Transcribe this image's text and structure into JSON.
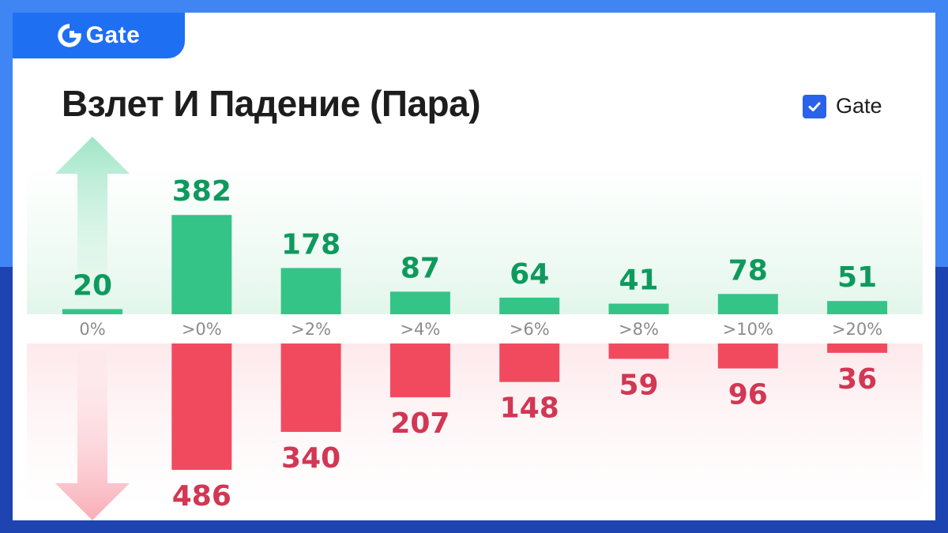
{
  "brand": {
    "name": "Gate"
  },
  "legend": {
    "label": "Gate",
    "checked": true
  },
  "colors": {
    "rise": "#34c487",
    "fall": "#f14a5e",
    "rise_text": "#0e9a5d",
    "fall_text": "#d23753",
    "brand_blue": "#1f6ff2"
  },
  "chart_data": {
    "type": "bar",
    "title": "Взлет И Падение (Пара)",
    "categories": [
      "0%",
      ">0%",
      ">2%",
      ">4%",
      ">6%",
      ">8%",
      ">10%",
      ">20%"
    ],
    "series": [
      {
        "direction": "up",
        "values": [
          20,
          382,
          178,
          87,
          64,
          41,
          78,
          51
        ]
      },
      {
        "direction": "down",
        "values": [
          0,
          486,
          340,
          207,
          148,
          59,
          96,
          36
        ]
      }
    ],
    "legend_position": "top-right",
    "grid": false
  }
}
